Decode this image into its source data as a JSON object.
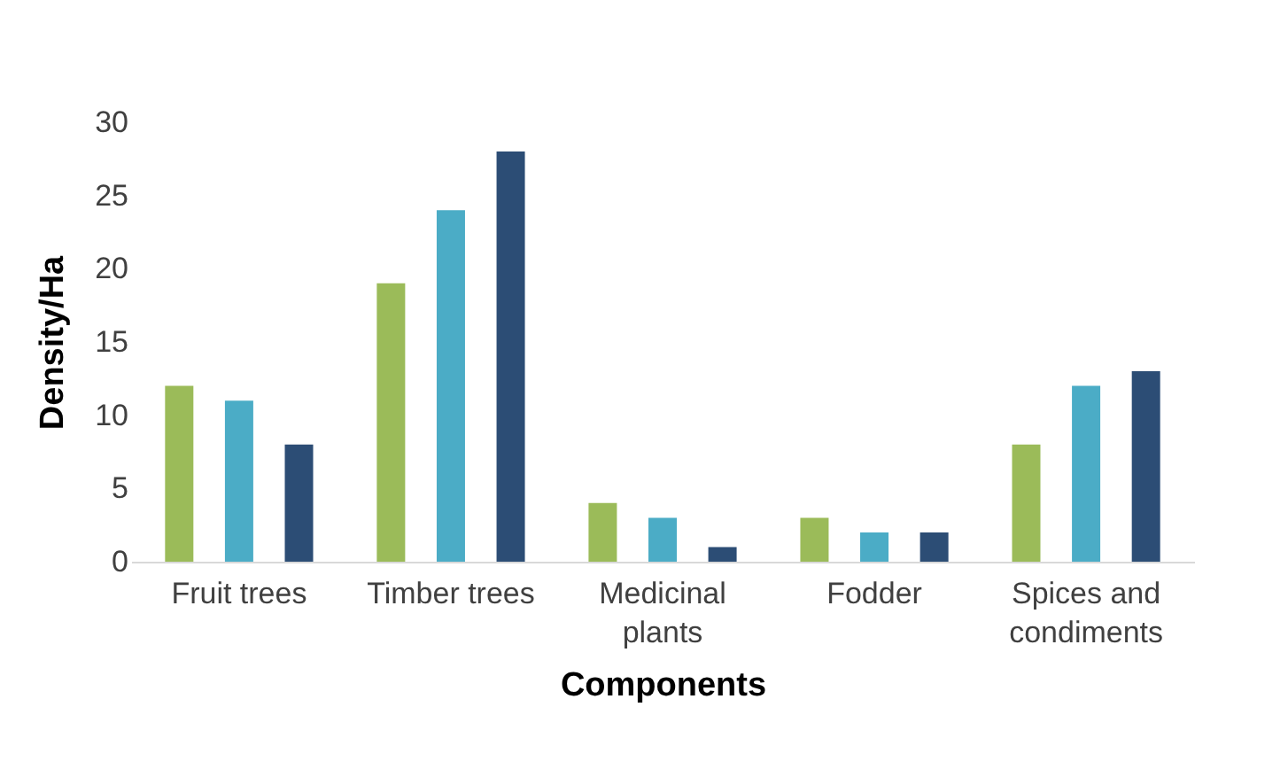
{
  "chart_data": {
    "type": "bar",
    "xlabel": "Components",
    "ylabel": "Density/Ha",
    "categories": [
      "Fruit trees",
      "Timber trees",
      "Medicinal plants",
      "Fodder",
      "Spices and condiments"
    ],
    "series": [
      {
        "color": "#9bbb59",
        "values": [
          12,
          19,
          4,
          3,
          8
        ]
      },
      {
        "color": "#4bacc6",
        "values": [
          11,
          24,
          3,
          2,
          12
        ]
      },
      {
        "color": "#2c4d75",
        "values": [
          8,
          28,
          1,
          2,
          13
        ]
      }
    ],
    "ylim": [
      0,
      30
    ],
    "yticks": [
      0,
      5,
      10,
      15,
      20,
      25,
      30
    ],
    "grid": false,
    "legend": false
  }
}
